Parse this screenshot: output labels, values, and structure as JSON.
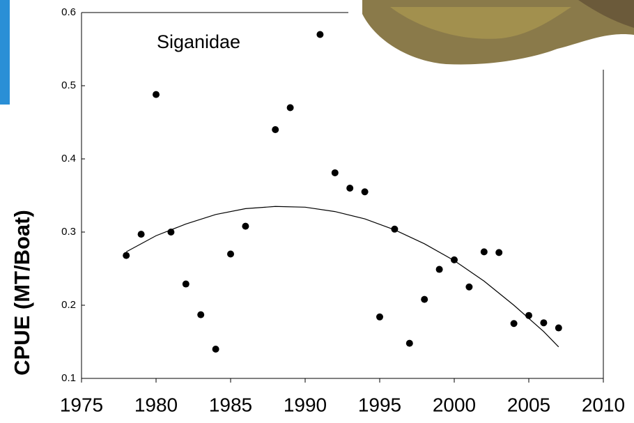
{
  "chart_data": {
    "type": "scatter",
    "annotation": "Siganidae",
    "y_label": "CPUE (MT/Boat)",
    "x": [
      1978,
      1979,
      1980,
      1981,
      1982,
      1983,
      1984,
      1985,
      1986,
      1988,
      1989,
      1991,
      1992,
      1993,
      1994,
      1995,
      1996,
      1997,
      1998,
      1999,
      2000,
      2001,
      2002,
      2003,
      2004,
      2005,
      2006,
      2007
    ],
    "values": [
      0.268,
      0.297,
      0.488,
      0.3,
      0.229,
      0.187,
      0.14,
      0.27,
      0.308,
      0.44,
      0.47,
      0.57,
      0.381,
      0.36,
      0.355,
      0.184,
      0.304,
      0.148,
      0.208,
      0.249,
      0.262,
      0.225,
      0.273,
      0.272,
      0.175,
      0.186,
      0.176,
      0.169
    ],
    "color": "#000000",
    "trend": {
      "x": [
        1978,
        1980,
        1982,
        1984,
        1986,
        1988,
        1990,
        1992,
        1994,
        1996,
        1998,
        2000,
        2002,
        2004,
        2006,
        2007
      ],
      "values": [
        0.273,
        0.295,
        0.311,
        0.324,
        0.332,
        0.335,
        0.334,
        0.328,
        0.318,
        0.303,
        0.284,
        0.261,
        0.233,
        0.2,
        0.164,
        0.143
      ],
      "color": "#000000"
    },
    "xlim": [
      1975,
      2010
    ],
    "xticks": [
      1975,
      1980,
      1985,
      1990,
      1995,
      2000,
      2005,
      2010
    ],
    "ylim": [
      0.1,
      0.6
    ],
    "yticks": [
      0.1,
      0.2,
      0.3,
      0.4,
      0.5,
      0.6
    ]
  }
}
